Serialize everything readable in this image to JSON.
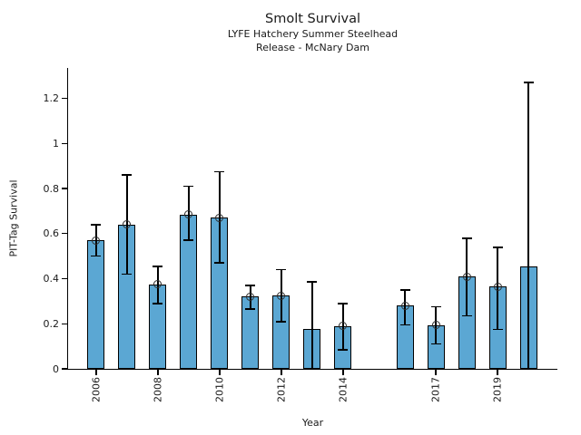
{
  "chart_data": {
    "type": "bar",
    "title": "Smolt Survival",
    "subtitle_line1": "LYFE Hatchery Summer Steelhead",
    "subtitle_line2": "Release - McNary Dam",
    "xlabel": "Year",
    "ylabel": "PIT-Tag Survival",
    "grid": false,
    "legend": "none",
    "ylim": [
      0,
      1.335
    ],
    "xlim": [
      2005.09,
      2020.94
    ],
    "yticks": {
      "values": [
        0,
        0.2,
        0.4,
        0.6,
        0.8,
        1,
        1.2
      ],
      "labels": [
        "0",
        "0.2",
        "0.4",
        "0.6",
        "0.8",
        "1",
        "1.2"
      ]
    },
    "xticks": {
      "values": [
        2006,
        2008,
        2010,
        2012,
        2014,
        2017,
        2019
      ],
      "labels": [
        "2006",
        "2008",
        "2010",
        "2012",
        "2014",
        "2017",
        "2019"
      ]
    },
    "bar_color": "#5BA7D3",
    "bar_edge_color": "#000000",
    "error_color": "#000000",
    "marker_style": "open-circle",
    "bars": [
      {
        "year": 2006,
        "value": 0.57,
        "ci_low": 0.5,
        "ci_high": 0.64,
        "marker": true
      },
      {
        "year": 2007,
        "value": 0.64,
        "ci_low": 0.42,
        "ci_high": 0.86,
        "marker": true
      },
      {
        "year": 2008,
        "value": 0.375,
        "ci_low": 0.29,
        "ci_high": 0.455,
        "marker": true
      },
      {
        "year": 2009,
        "value": 0.685,
        "ci_low": 0.57,
        "ci_high": 0.81,
        "marker": true
      },
      {
        "year": 2010,
        "value": 0.67,
        "ci_low": 0.47,
        "ci_high": 0.875,
        "marker": true
      },
      {
        "year": 2011,
        "value": 0.32,
        "ci_low": 0.265,
        "ci_high": 0.37,
        "marker": true
      },
      {
        "year": 2012,
        "value": 0.325,
        "ci_low": 0.21,
        "ci_high": 0.44,
        "marker": true
      },
      {
        "year": 2013,
        "value": 0.175,
        "ci_low": 0.0,
        "ci_high": 0.385,
        "marker": false
      },
      {
        "year": 2014,
        "value": 0.19,
        "ci_low": 0.085,
        "ci_high": 0.29,
        "marker": true
      },
      {
        "year": 2016,
        "value": 0.28,
        "ci_low": 0.195,
        "ci_high": 0.35,
        "marker": true
      },
      {
        "year": 2017,
        "value": 0.195,
        "ci_low": 0.11,
        "ci_high": 0.275,
        "marker": true
      },
      {
        "year": 2018,
        "value": 0.41,
        "ci_low": 0.235,
        "ci_high": 0.58,
        "marker": true
      },
      {
        "year": 2019,
        "value": 0.365,
        "ci_low": 0.175,
        "ci_high": 0.54,
        "marker": true
      },
      {
        "year": 2020,
        "value": 0.455,
        "ci_low": 0.0,
        "ci_high": 1.27,
        "marker": false
      }
    ]
  }
}
